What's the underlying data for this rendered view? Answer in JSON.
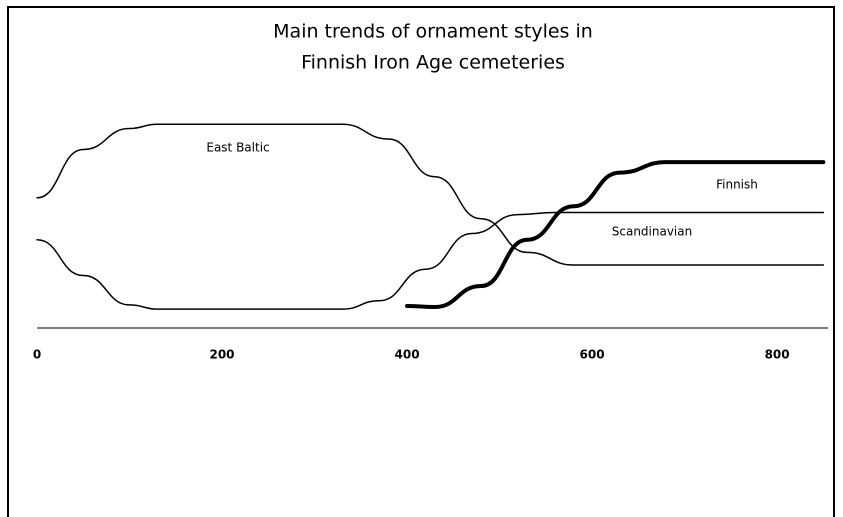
{
  "chart_data": {
    "type": "line",
    "title": [
      "Main trends of ornament styles in",
      "Finnish Iron Age cemeteries"
    ],
    "xlim": [
      0,
      855
    ],
    "ylim": [
      0,
      100
    ],
    "xticks": [
      0,
      200,
      400,
      600,
      800
    ],
    "series": [
      {
        "name": "East Baltic",
        "color": "#000000",
        "x": [
          0,
          50,
          100,
          130,
          330,
          380,
          430,
          480,
          530,
          580,
          650,
          850
        ],
        "values": [
          62,
          85,
          95,
          97,
          97,
          90,
          72,
          52,
          36,
          30,
          30,
          30
        ]
      },
      {
        "name": "Scandinavian",
        "color": "#000000",
        "x": [
          0,
          50,
          100,
          130,
          330,
          370,
          420,
          470,
          520,
          560,
          850
        ],
        "values": [
          42,
          25,
          11,
          9,
          9,
          13,
          28,
          45,
          54,
          55,
          55
        ]
      },
      {
        "name": "Finnish",
        "color": "#000000",
        "x": [
          400,
          430,
          480,
          530,
          580,
          630,
          680,
          850
        ],
        "values": [
          10.5,
          10,
          20,
          42,
          58,
          74,
          79,
          79
        ]
      }
    ]
  }
}
